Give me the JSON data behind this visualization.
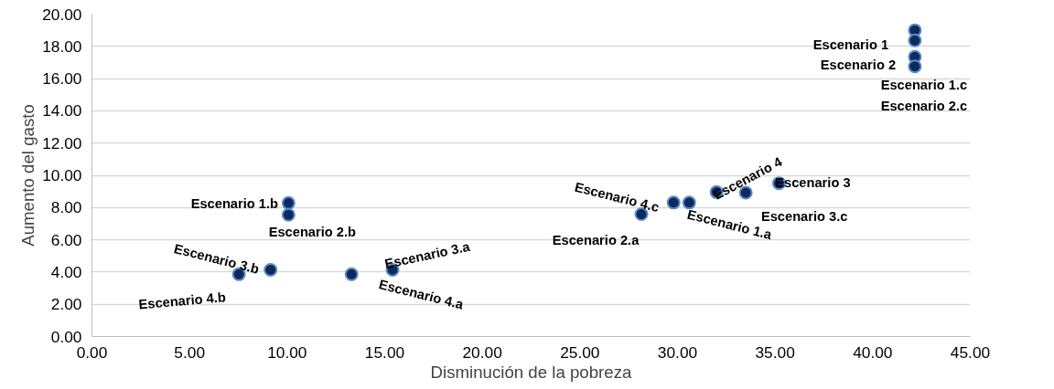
{
  "chart_data": {
    "type": "scatter",
    "xlabel": "Disminución de la pobreza",
    "ylabel": "Aumento del gasto",
    "x": [
      10.07,
      10.07,
      7.53,
      9.15,
      13.3,
      15.4,
      28.15,
      29.8,
      30.6,
      32.0,
      33.5,
      35.2,
      42.16,
      42.16,
      42.16,
      42.16
    ],
    "series": [
      {
        "color": "#0d2a5e",
        "values": [
          8.28,
          7.55,
          3.86,
          4.14,
          3.86,
          4.14,
          7.59,
          8.31,
          8.31,
          8.96,
          8.92,
          9.51,
          19.0,
          18.37,
          17.35,
          16.76
        ],
        "value_labels": [
          "Escenario 1.b",
          "Escenario 2.b",
          "Escenario 4.b",
          "Escenario 3.b",
          "Escenario 4.a",
          "Escenario 3.a",
          "Escenario 2.a",
          "Escenario 4.c",
          "Escenario 1.a",
          "Escenario 4",
          "Escenario 3.c",
          "Escenario 3",
          "Escenario 1",
          "Escenario 2",
          "Escenario 2.c",
          "Escenario 1.c"
        ]
      }
    ],
    "marker": "circle",
    "xlim": [
      0,
      45
    ],
    "xticks": [
      {
        "value": 0,
        "label": "0.00"
      },
      {
        "value": 5,
        "label": "5.00"
      },
      {
        "value": 10,
        "label": "10.00"
      },
      {
        "value": 15,
        "label": "15.00"
      },
      {
        "value": 20,
        "label": "20.00"
      },
      {
        "value": 25,
        "label": "25.00"
      },
      {
        "value": 30,
        "label": "30.00"
      },
      {
        "value": 35,
        "label": "35.00"
      },
      {
        "value": 40,
        "label": "40.00"
      },
      {
        "value": 45,
        "label": "45.00"
      }
    ],
    "ylim": [
      0,
      20
    ],
    "yticks": [
      {
        "value": 0,
        "label": "0.00"
      },
      {
        "value": 2,
        "label": "2.00"
      },
      {
        "value": 4,
        "label": "4.00"
      },
      {
        "value": 6,
        "label": "6.00"
      },
      {
        "value": 8,
        "label": "8.00"
      },
      {
        "value": 10,
        "label": "10.00"
      },
      {
        "value": 12,
        "label": "12.00"
      },
      {
        "value": 14,
        "label": "14.00"
      },
      {
        "value": 16,
        "label": "16.00"
      },
      {
        "value": 18,
        "label": "18.00"
      },
      {
        "value": 20,
        "label": "20.00"
      }
    ],
    "grid": "y"
  }
}
